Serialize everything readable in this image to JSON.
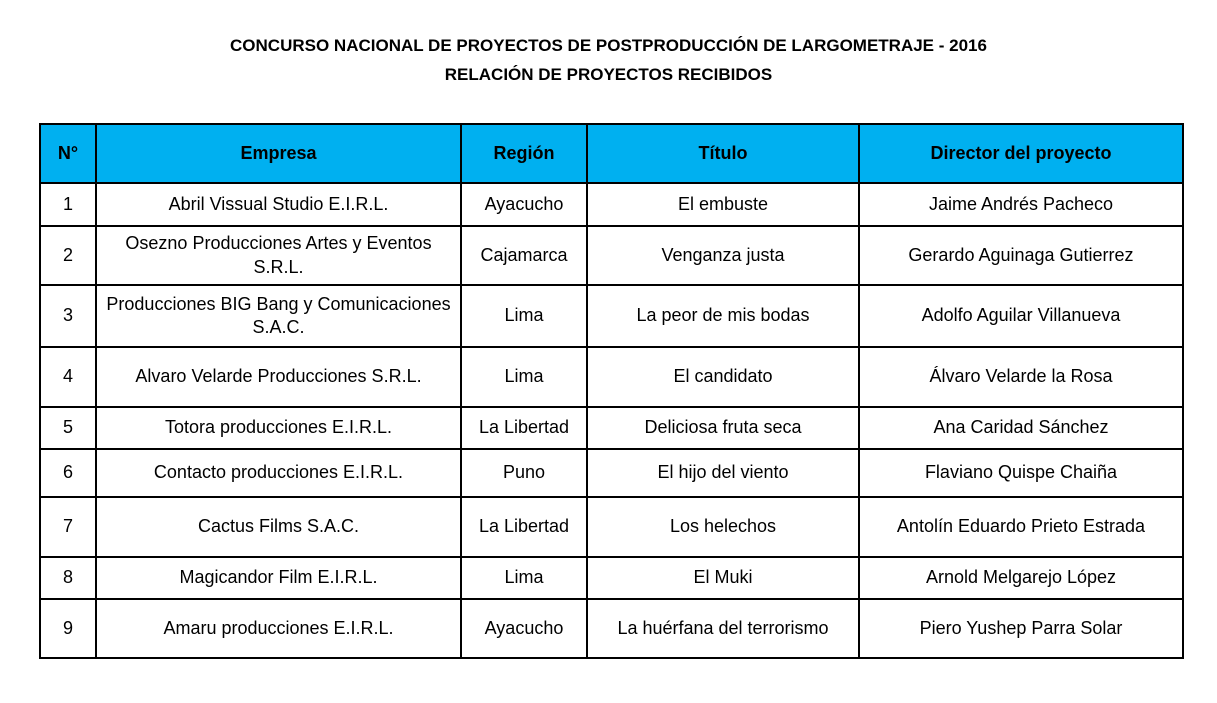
{
  "header": {
    "title": "CONCURSO NACIONAL DE PROYECTOS DE POSTPRODUCCIÓN DE LARGOMETRAJE - 2016",
    "subtitle": "RELACIÓN DE PROYECTOS RECIBIDOS"
  },
  "table": {
    "columns": [
      "N°",
      "Empresa",
      "Región",
      "Título",
      "Director del proyecto"
    ],
    "rows": [
      [
        "1",
        "Abril Vissual Studio E.I.R.L.",
        "Ayacucho",
        "El embuste",
        "Jaime Andrés Pacheco"
      ],
      [
        "2",
        "Osezno Producciones Artes y Eventos S.R.L.",
        "Cajamarca",
        "Venganza justa",
        "Gerardo Aguinaga Gutierrez"
      ],
      [
        "3",
        "Producciones BIG Bang y Comunicaciones S.A.C.",
        "Lima",
        "La peor de mis bodas",
        "Adolfo Aguilar Villanueva"
      ],
      [
        "4",
        "Alvaro Velarde Producciones S.R.L.",
        "Lima",
        "El candidato",
        "Álvaro Velarde la Rosa"
      ],
      [
        "5",
        "Totora producciones E.I.R.L.",
        "La Libertad",
        "Deliciosa fruta seca",
        "Ana Caridad Sánchez"
      ],
      [
        "6",
        "Contacto producciones E.I.R.L.",
        "Puno",
        "El hijo del viento",
        "Flaviano Quispe Chaiña"
      ],
      [
        "7",
        "Cactus Films S.A.C.",
        "La Libertad",
        "Los helechos",
        "Antolín Eduardo Prieto Estrada"
      ],
      [
        "8",
        "Magicandor Film E.I.R.L.",
        "Lima",
        "El Muki",
        "Arnold Melgarejo López"
      ],
      [
        "9",
        "Amaru producciones E.I.R.L.",
        "Ayacucho",
        "La huérfana del terrorismo",
        "Piero Yushep Parra Solar"
      ]
    ]
  }
}
